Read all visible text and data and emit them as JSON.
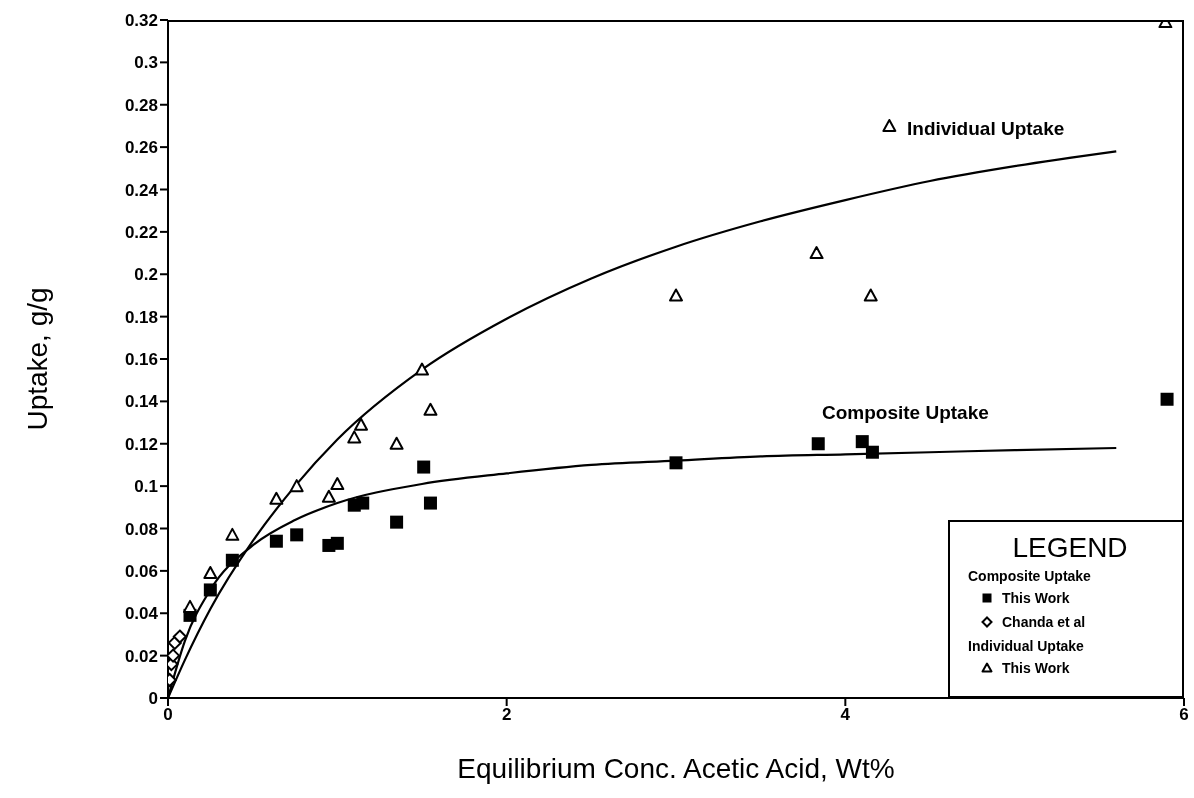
{
  "chart_data": {
    "type": "scatter",
    "xlabel": "Equilibrium Conc. Acetic Acid, Wt%",
    "ylabel": "Uptake, g/g",
    "legend_title": "LEGEND",
    "xlim": [
      0,
      6
    ],
    "xticks": [
      0,
      2,
      4,
      6
    ],
    "ylim": [
      0,
      0.32
    ],
    "yticks": [
      0,
      0.02,
      0.04,
      0.06,
      0.08,
      0.1,
      0.12,
      0.14,
      0.16,
      0.18,
      0.2,
      0.22,
      0.24,
      0.26,
      0.28,
      0.3,
      0.32
    ],
    "grid": false,
    "legend": "bottom right",
    "annotations": [
      "Individual Uptake",
      "Composite Uptake",
      "Composite Uptake",
      "Individual Uptake"
    ],
    "series": [
      {
        "name": "This Work",
        "marker": "square",
        "color": "#000000",
        "x": [
          0.13,
          0.25,
          0.38,
          0.64,
          0.76,
          0.95,
          1.0,
          1.1,
          1.15,
          1.35,
          1.51,
          1.55,
          3.0,
          3.84,
          4.1,
          4.16,
          5.9
        ],
        "values": [
          0.039,
          0.051,
          0.065,
          0.074,
          0.077,
          0.072,
          0.073,
          0.091,
          0.092,
          0.083,
          0.109,
          0.092,
          0.111,
          0.12,
          0.121,
          0.116,
          0.141
        ]
      },
      {
        "name": "Chanda et al",
        "marker": "diamond",
        "color": "#000000",
        "x": [
          0.01,
          0.02,
          0.03,
          0.04,
          0.07
        ],
        "values": [
          0.0085,
          0.016,
          0.02,
          0.026,
          0.029
        ]
      },
      {
        "name": "This Work",
        "marker": "triangle",
        "color": "#000000",
        "x": [
          0.13,
          0.25,
          0.38,
          0.64,
          0.76,
          0.95,
          1.0,
          1.1,
          1.14,
          1.35,
          1.5,
          1.55,
          3.0,
          3.83,
          4.15,
          4.26,
          5.89
        ],
        "values": [
          0.043,
          0.059,
          0.077,
          0.094,
          0.1,
          0.095,
          0.101,
          0.123,
          0.129,
          0.12,
          0.155,
          0.136,
          0.19,
          0.21,
          0.19,
          0.27,
          0.319
        ]
      },
      {
        "type": "line",
        "marker": "none",
        "color": "#000000",
        "x": [
          0,
          0.1,
          0.25,
          0.5,
          0.75,
          1,
          1.5,
          2,
          2.5,
          3,
          3.5,
          4,
          4.5,
          5,
          5.6
        ],
        "values": [
          0,
          0.027,
          0.051,
          0.072,
          0.084,
          0.092,
          0.101,
          0.106,
          0.11,
          0.112,
          0.114,
          0.115,
          0.116,
          0.117,
          0.118
        ]
      },
      {
        "type": "line",
        "marker": "none",
        "color": "#000000",
        "x": [
          0,
          0.1,
          0.25,
          0.5,
          0.75,
          1,
          1.5,
          2,
          2.5,
          3,
          3.5,
          4,
          4.5,
          5,
          5.6
        ],
        "values": [
          0,
          0.018,
          0.042,
          0.074,
          0.1,
          0.122,
          0.155,
          0.179,
          0.198,
          0.213,
          0.225,
          0.235,
          0.244,
          0.251,
          0.258
        ]
      }
    ]
  }
}
